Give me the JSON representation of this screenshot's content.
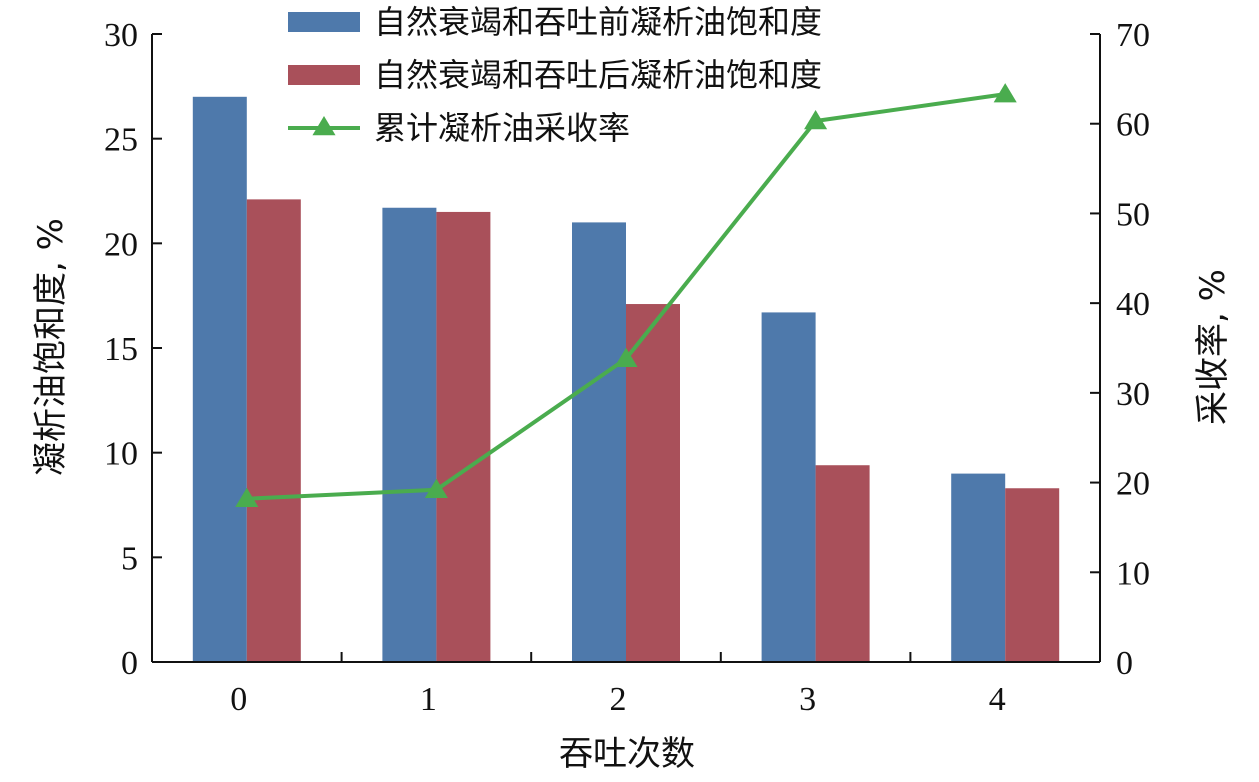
{
  "chart_data": {
    "type": "bar",
    "categories": [
      "0",
      "1",
      "2",
      "3",
      "4"
    ],
    "series": [
      {
        "name": "自然衰竭和吞吐前凝析油饱和度",
        "kind": "bar",
        "axis": "left",
        "color": "#4e79ab",
        "values": [
          27.0,
          21.7,
          21.0,
          16.7,
          9.0
        ]
      },
      {
        "name": "自然衰竭和吞吐后凝析油饱和度",
        "kind": "bar",
        "axis": "left",
        "color": "#a9505a",
        "values": [
          22.1,
          21.5,
          17.1,
          9.4,
          8.3
        ]
      },
      {
        "name": "累计凝析油采收率",
        "kind": "line",
        "axis": "right",
        "color": "#4aac4e",
        "marker": "triangle",
        "values": [
          18.2,
          19.2,
          33.8,
          60.3,
          63.3
        ]
      }
    ],
    "xlabel": "吞吐次数",
    "ylabel": "凝析油饱和度, %",
    "y2label": "采收率, %",
    "ylim": [
      0,
      30
    ],
    "y2lim": [
      0,
      70
    ],
    "yticks": [
      0,
      5,
      10,
      15,
      20,
      25,
      30
    ],
    "y2ticks": [
      0,
      10,
      20,
      30,
      40,
      50,
      60,
      70
    ],
    "grid": false,
    "legend": "top-center"
  }
}
